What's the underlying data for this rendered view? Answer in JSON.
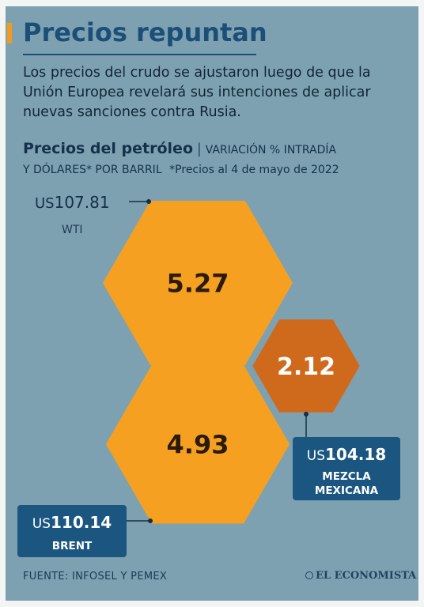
{
  "header": {
    "title": "Precios repuntan",
    "subtitle": "Los precios del crudo se ajustaron luego de que la Unión Europea revelará sus intenciones de aplicar nuevas sanciones contra Rusia."
  },
  "chart_heading": {
    "title": "Precios del petróleo",
    "separator": "|",
    "subtitle_line1": "VARIACIÓN % INTRADÍA",
    "subtitle_line2": "Y DÓLARES* POR BARRIL",
    "note": "*Precios al 4 de mayo de 2022"
  },
  "chart_data": {
    "type": "bubble",
    "title": "Precios del petróleo",
    "subtitle": "VARIACIÓN % INTRADÍA Y DÓLARES* POR BARRIL",
    "note": "*Precios al 4 de mayo de 2022",
    "series": [
      {
        "name": "WTI",
        "change_pct": 5.27,
        "change_label": "5.27",
        "currency": "US",
        "price": "107.81",
        "color": "#f6a022"
      },
      {
        "name": "BRENT",
        "change_pct": 4.93,
        "change_label": "4.93",
        "currency": "US",
        "price": "110.14",
        "color": "#f6a022"
      },
      {
        "name": "MEZCLA MEXICANA",
        "name_lines": [
          "MEZCLA",
          "MEXICANA"
        ],
        "change_pct": 2.12,
        "change_label": "2.12",
        "currency": "US",
        "price": "104.18",
        "color": "#cf6a1c"
      }
    ]
  },
  "footer": {
    "source": "FUENTE: INFOSEL Y PEMEX",
    "brand": "EL ECONOMISTA"
  },
  "colors": {
    "background": "#7ea1b1",
    "title": "#1c4f78",
    "accent": "#f29a1b",
    "hex_orange": "#f6a022",
    "hex_dark_orange": "#cf6a1c",
    "label_box": "#1b5680"
  }
}
